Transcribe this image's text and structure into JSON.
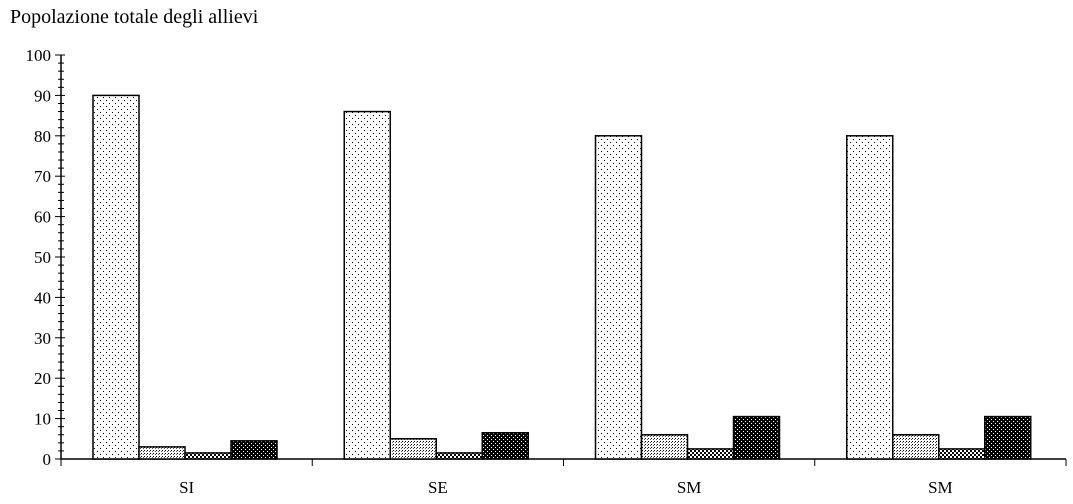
{
  "chart_data": {
    "type": "bar",
    "title": "Popolazione totale degli allievi",
    "xlabel": "",
    "ylabel": "",
    "ylim": [
      0,
      100
    ],
    "yticks": [
      0,
      10,
      20,
      30,
      40,
      50,
      60,
      70,
      80,
      90,
      100
    ],
    "categories": [
      "SI",
      "SE",
      "SM",
      "SM"
    ],
    "legend": "none",
    "grid": false,
    "series": [
      {
        "values": [
          90,
          86,
          80,
          80
        ],
        "pattern": "sparse-dots"
      },
      {
        "values": [
          3,
          5,
          6,
          6
        ],
        "pattern": "dense-dots"
      },
      {
        "values": [
          1.5,
          1.5,
          2.5,
          2.5
        ],
        "pattern": "checker"
      },
      {
        "values": [
          4.5,
          6.5,
          10.5,
          10.5
        ],
        "pattern": "dark-checker"
      }
    ]
  }
}
